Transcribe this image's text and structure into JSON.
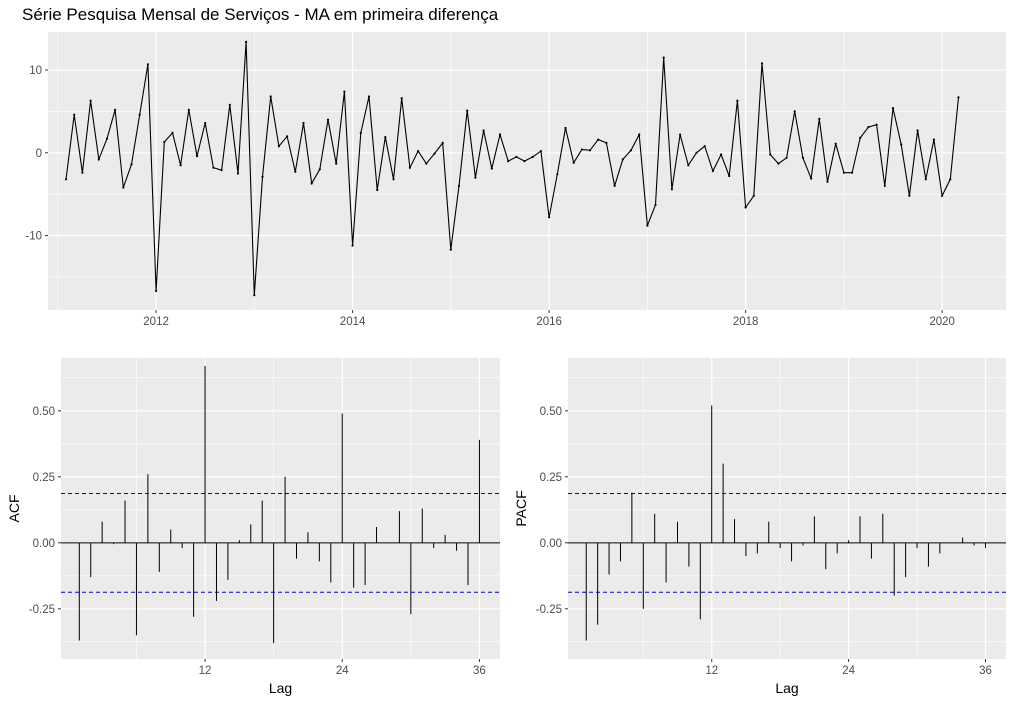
{
  "title": "Série Pesquisa Mensal de Serviços - MA em primeira diferença",
  "colors": {
    "panel": "#ebebeb",
    "grid": "#ffffff",
    "line": "#000000",
    "ci": "#0000cc",
    "tick_text": "#4d4d4d"
  },
  "chart_data": [
    {
      "id": "series",
      "type": "line",
      "title": "Série Pesquisa Mensal de Serviços - MA em primeira diferença",
      "xlabel": "",
      "ylabel": "",
      "x_ticks": [
        "2012",
        "2014",
        "2016",
        "2018",
        "2020"
      ],
      "y_ticks": [
        "-10",
        "0",
        "10"
      ],
      "xlim": [
        2010.9,
        2020.65
      ],
      "ylim": [
        -19,
        14.6
      ],
      "start": 2011.0833,
      "freq": 12,
      "values": [
        -3.2,
        4.6,
        -2.4,
        6.3,
        -0.8,
        1.7,
        5.2,
        -4.2,
        -1.4,
        4.6,
        10.7,
        -16.7,
        1.3,
        2.4,
        -1.5,
        5.2,
        -0.4,
        3.6,
        -1.8,
        -2.1,
        5.8,
        -2.5,
        13.4,
        -17.2,
        -2.9,
        6.8,
        0.8,
        2.0,
        -2.3,
        3.6,
        -3.7,
        -2.0,
        4.0,
        -1.3,
        7.4,
        -11.2,
        2.4,
        6.8,
        -4.5,
        1.9,
        -3.2,
        6.6,
        -1.8,
        0.2,
        -1.3,
        -0.1,
        1.2,
        -11.7,
        -4.0,
        5.1,
        -3.0,
        2.7,
        -1.9,
        2.2,
        -1.0,
        -0.5,
        -1.0,
        -0.5,
        0.2,
        -7.8,
        -2.6,
        3.0,
        -1.2,
        0.4,
        0.3,
        1.6,
        1.2,
        -4.0,
        -0.8,
        0.3,
        2.2,
        -8.8,
        -6.3,
        11.5,
        -4.4,
        2.2,
        -1.5,
        0.0,
        0.8,
        -2.2,
        -0.2,
        -2.8,
        6.3,
        -6.6,
        -5.2,
        10.8,
        -0.2,
        -1.3,
        -0.6,
        5.0,
        -0.6,
        -3.1,
        4.1,
        -3.5,
        1.1,
        -2.4,
        -2.4,
        1.8,
        3.1,
        3.4,
        -4.0,
        5.4,
        1.0,
        -5.2,
        2.7,
        -3.2,
        1.6,
        -5.2,
        -3.2,
        6.7
      ]
    },
    {
      "id": "acf",
      "type": "bar",
      "xlabel": "Lag",
      "ylabel": "ACF",
      "x_ticks": [
        "12",
        "24",
        "36"
      ],
      "y_ticks": [
        "-0.25",
        "0.00",
        "0.25",
        "0.50"
      ],
      "xlim": [
        -0.6,
        37.8
      ],
      "ylim": [
        -0.44,
        0.7
      ],
      "ci": 0.187,
      "lags": [
        1,
        2,
        3,
        4,
        5,
        6,
        7,
        8,
        9,
        10,
        11,
        12,
        13,
        14,
        15,
        16,
        17,
        18,
        19,
        20,
        21,
        22,
        23,
        24,
        25,
        26,
        27,
        28,
        29,
        30,
        31,
        32,
        33,
        34,
        35,
        36
      ],
      "values": [
        -0.37,
        -0.13,
        0.08,
        -0.005,
        0.16,
        -0.35,
        0.26,
        -0.11,
        0.05,
        -0.02,
        -0.28,
        0.67,
        -0.22,
        -0.14,
        0.01,
        0.07,
        0.16,
        -0.38,
        0.25,
        -0.06,
        0.04,
        -0.07,
        -0.15,
        0.49,
        -0.17,
        -0.16,
        0.06,
        0.0,
        0.12,
        -0.27,
        0.13,
        -0.02,
        0.03,
        -0.03,
        -0.16,
        0.39
      ]
    },
    {
      "id": "pacf",
      "type": "bar",
      "xlabel": "Lag",
      "ylabel": "PACF",
      "x_ticks": [
        "12",
        "24",
        "36"
      ],
      "y_ticks": [
        "-0.25",
        "0.00",
        "0.25",
        "0.50"
      ],
      "xlim": [
        -0.6,
        37.8
      ],
      "ylim": [
        -0.44,
        0.7
      ],
      "ci": 0.187,
      "lags": [
        1,
        2,
        3,
        4,
        5,
        6,
        7,
        8,
        9,
        10,
        11,
        12,
        13,
        14,
        15,
        16,
        17,
        18,
        19,
        20,
        21,
        22,
        23,
        24,
        25,
        26,
        27,
        28,
        29,
        30,
        31,
        32,
        33,
        34,
        35,
        36
      ],
      "values": [
        -0.37,
        -0.31,
        -0.12,
        -0.07,
        0.19,
        -0.25,
        0.11,
        -0.15,
        0.08,
        -0.09,
        -0.29,
        0.52,
        0.3,
        0.09,
        -0.05,
        -0.04,
        0.08,
        -0.02,
        -0.07,
        -0.01,
        0.1,
        -0.1,
        -0.04,
        0.01,
        0.1,
        -0.06,
        0.11,
        -0.2,
        -0.13,
        -0.02,
        -0.09,
        -0.04,
        0.0,
        0.02,
        -0.01,
        -0.02
      ]
    }
  ]
}
